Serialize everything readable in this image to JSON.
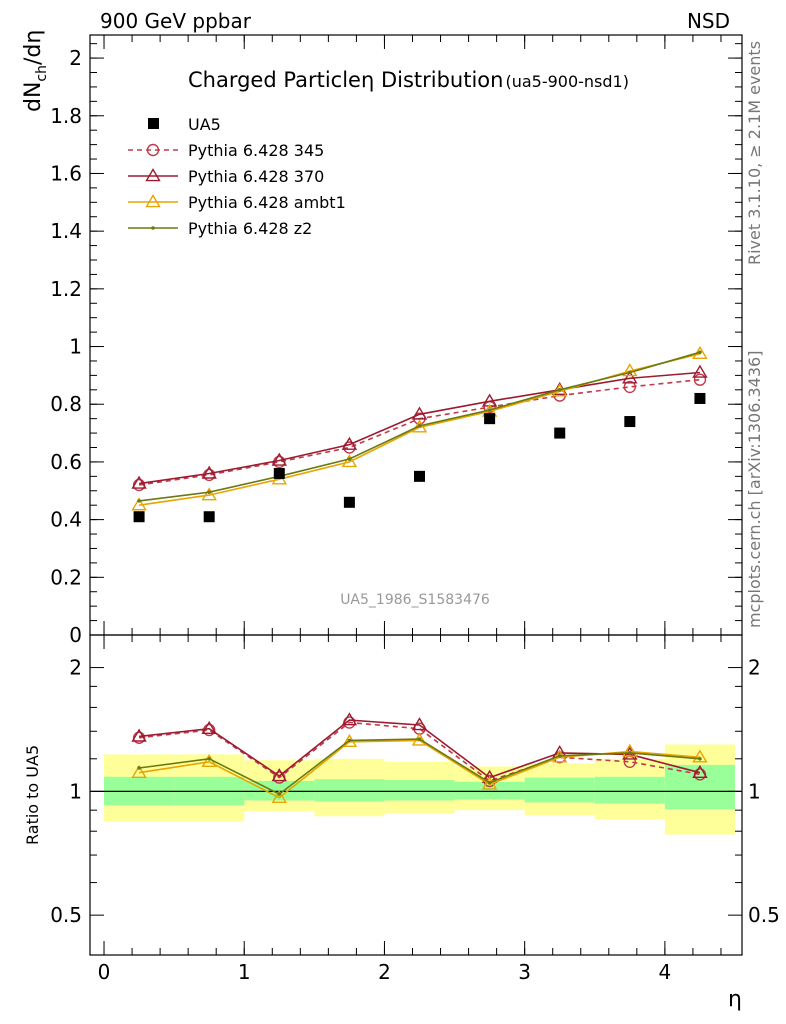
{
  "header": {
    "left": "900 GeV ppbar",
    "right": "NSD"
  },
  "side_labels": {
    "rivet": "Rivet 3.1.10, ≥ 2.1M events",
    "mcplots": "mcplots.cern.ch [arXiv:1306.3436]"
  },
  "chart_data": {
    "type": "line",
    "title": "Charged Particleη Distribution",
    "title_suffix": "(ua5-900-nsd1)",
    "watermark": "UA5_1986_S1583476",
    "xlabel": "η",
    "ylabel": "dN",
    "ylabel_sub": "ch",
    "ylabel_tail": "/dη",
    "ratio_ylabel": "Ratio to UA5",
    "xlim": [
      -0.1,
      4.55
    ],
    "ylim": [
      0,
      2.08
    ],
    "ratio_ylim": [
      0.4,
      2.4
    ],
    "ratio_scale": "log",
    "x_ticks": [
      0,
      1,
      2,
      3,
      4
    ],
    "x_tick_labels": [
      "0",
      "1",
      "2",
      "3",
      "4"
    ],
    "y_ticks": [
      0,
      0.2,
      0.4,
      0.6,
      0.8,
      1,
      1.2,
      1.4,
      1.6,
      1.8,
      2
    ],
    "y_tick_labels": [
      "0",
      "0.2",
      "0.4",
      "0.6",
      "0.8",
      "1",
      "1.2",
      "1.4",
      "1.6",
      "1.8",
      "2"
    ],
    "ratio_ticks": [
      0.5,
      1,
      2
    ],
    "ratio_tick_labels": [
      "0.5",
      "1",
      "2"
    ],
    "x_bins": [
      0,
      0.5,
      1,
      1.5,
      2,
      2.5,
      3,
      3.5,
      4,
      4.5
    ],
    "x": [
      0.25,
      0.75,
      1.25,
      1.75,
      2.25,
      2.75,
      3.25,
      3.75,
      4.25
    ],
    "data": {
      "name": "UA5",
      "values": [
        0.41,
        0.41,
        0.56,
        0.46,
        0.55,
        0.75,
        0.7,
        0.74,
        0.82
      ]
    },
    "band_stat": {
      "lo": [
        0.925,
        0.925,
        0.95,
        0.945,
        0.95,
        0.955,
        0.94,
        0.935,
        0.905
      ],
      "hi": [
        1.085,
        1.085,
        1.06,
        1.07,
        1.065,
        1.055,
        1.08,
        1.085,
        1.16
      ]
    },
    "band_syst": {
      "lo": [
        0.845,
        0.845,
        0.895,
        0.87,
        0.885,
        0.9,
        0.875,
        0.855,
        0.785
      ],
      "hi": [
        1.23,
        1.23,
        1.19,
        1.2,
        1.18,
        1.15,
        1.17,
        1.2,
        1.3
      ]
    },
    "series": [
      {
        "name": "Pythia 6.428 345",
        "color": "#c03a4a",
        "dash": "5,4",
        "marker": "circle",
        "values": [
          0.52,
          0.555,
          0.6,
          0.65,
          0.75,
          0.79,
          0.83,
          0.86,
          0.885
        ],
        "ratio": [
          1.35,
          1.41,
          1.08,
          1.47,
          1.42,
          1.06,
          1.21,
          1.18,
          1.1
        ]
      },
      {
        "name": "Pythia 6.428 370",
        "color": "#9b1b30",
        "dash": "",
        "marker": "triangle",
        "values": [
          0.525,
          0.56,
          0.605,
          0.66,
          0.765,
          0.81,
          0.85,
          0.89,
          0.91
        ],
        "ratio": [
          1.36,
          1.42,
          1.09,
          1.49,
          1.45,
          1.08,
          1.24,
          1.23,
          1.11
        ]
      },
      {
        "name": "Pythia 6.428 ambt1",
        "color": "#e8a400",
        "dash": "",
        "marker": "triangle",
        "values": [
          0.45,
          0.485,
          0.54,
          0.6,
          0.72,
          0.775,
          0.845,
          0.915,
          0.975
        ],
        "ratio": [
          1.11,
          1.18,
          0.965,
          1.32,
          1.33,
          1.04,
          1.21,
          1.25,
          1.21
        ]
      },
      {
        "name": "Pythia 6.428 z2",
        "color": "#6b7a10",
        "dash": "",
        "marker": "dot",
        "values": [
          0.465,
          0.495,
          0.55,
          0.61,
          0.725,
          0.78,
          0.85,
          0.91,
          0.98
        ],
        "ratio": [
          1.14,
          1.2,
          0.985,
          1.33,
          1.34,
          1.05,
          1.22,
          1.24,
          1.2
        ]
      }
    ]
  }
}
